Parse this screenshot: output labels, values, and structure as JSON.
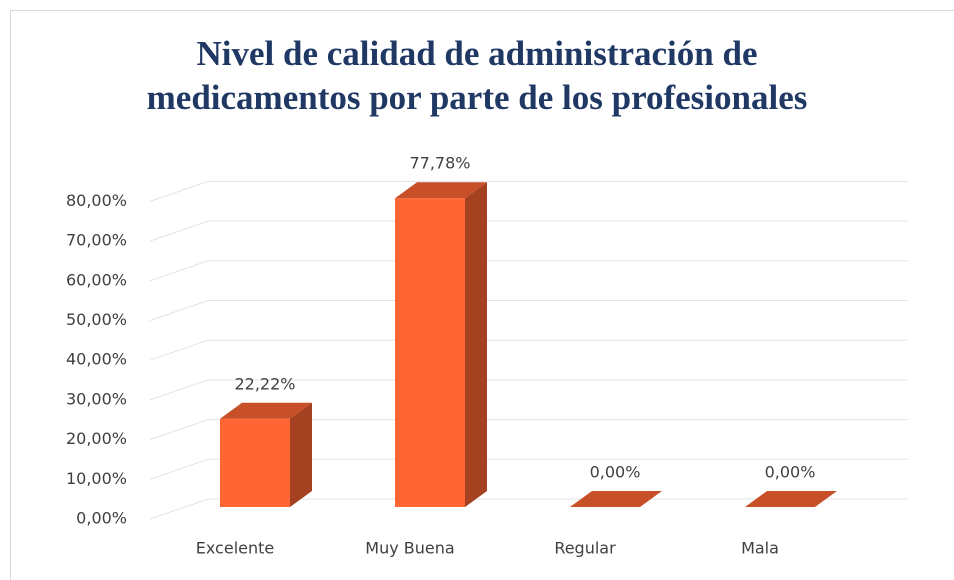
{
  "chart_data": {
    "type": "bar3d",
    "title": "Nivel de calidad de administración de medicamentos por parte de los profesionales",
    "categories": [
      "Excelente",
      "Muy Buena",
      "Regular",
      "Mala"
    ],
    "values": [
      22.22,
      77.78,
      0,
      0
    ],
    "value_labels": [
      "22,22%",
      "77,78%",
      "0,00%",
      "0,00%"
    ],
    "color": "#ff6633",
    "ylim": [
      0,
      80
    ],
    "yticks": [
      {
        "value": 0,
        "label": "0,00%"
      },
      {
        "value": 10,
        "label": "10,00%"
      },
      {
        "value": 20,
        "label": "20,00%"
      },
      {
        "value": 30,
        "label": "30,00%"
      },
      {
        "value": 40,
        "label": "40,00%"
      },
      {
        "value": 50,
        "label": "50,00%"
      },
      {
        "value": 60,
        "label": "60,00%"
      },
      {
        "value": 70,
        "label": "70,00%"
      },
      {
        "value": 80,
        "label": "80,00%"
      }
    ],
    "grid": true
  }
}
